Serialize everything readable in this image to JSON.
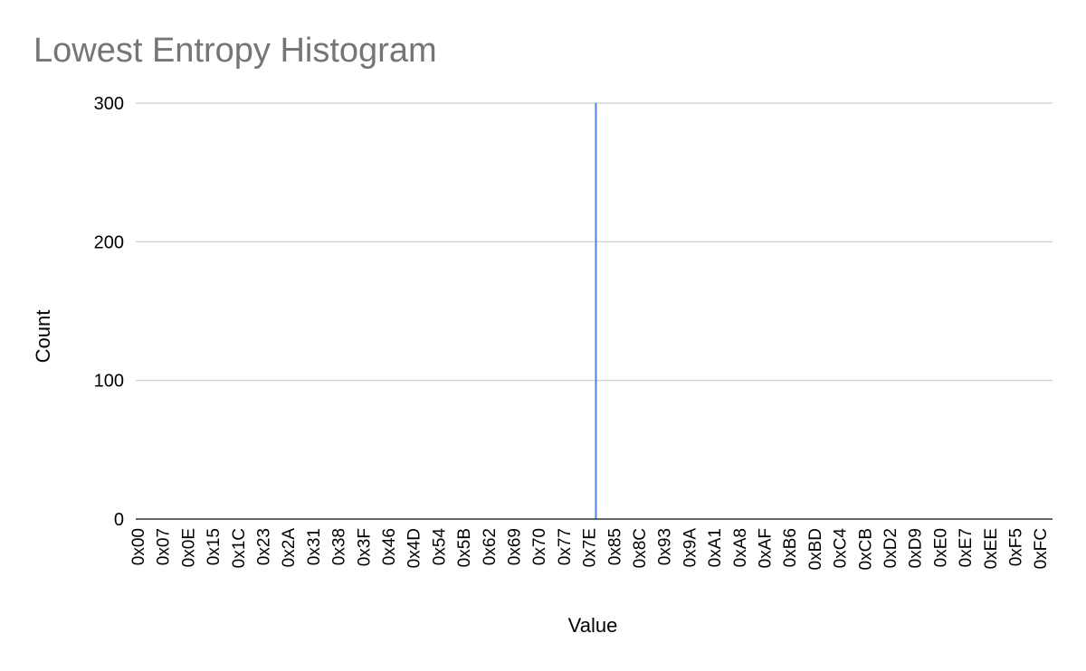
{
  "chart_data": {
    "type": "bar",
    "title": "Lowest Entropy Histogram",
    "xlabel": "Value",
    "ylabel": "Count",
    "ylim": [
      0,
      300
    ],
    "y_ticks": [
      "0",
      "100",
      "200",
      "300"
    ],
    "x_tick_labels": [
      "0x00",
      "0x07",
      "0x0E",
      "0x15",
      "0x1C",
      "0x23",
      "0x2A",
      "0x31",
      "0x38",
      "0x3F",
      "0x46",
      "0x4D",
      "0x54",
      "0x5B",
      "0x62",
      "0x69",
      "0x70",
      "0x77",
      "0x7E",
      "0x85",
      "0x8C",
      "0x93",
      "0x9A",
      "0xA1",
      "0xA8",
      "0xAF",
      "0xB6",
      "0xBD",
      "0xC4",
      "0xCB",
      "0xD2",
      "0xD9",
      "0xE0",
      "0xE7",
      "0xEE",
      "0xF5",
      "0xFC"
    ],
    "category_count": 256,
    "x_tick_step": 7,
    "nonzero": [
      {
        "x": "0x80",
        "value": 300
      }
    ],
    "grid": true,
    "legend": "none",
    "bar_color": "#4a86e8",
    "gridline_color": "#cccccc",
    "baseline_color": "#333333",
    "title_color": "#757575"
  }
}
